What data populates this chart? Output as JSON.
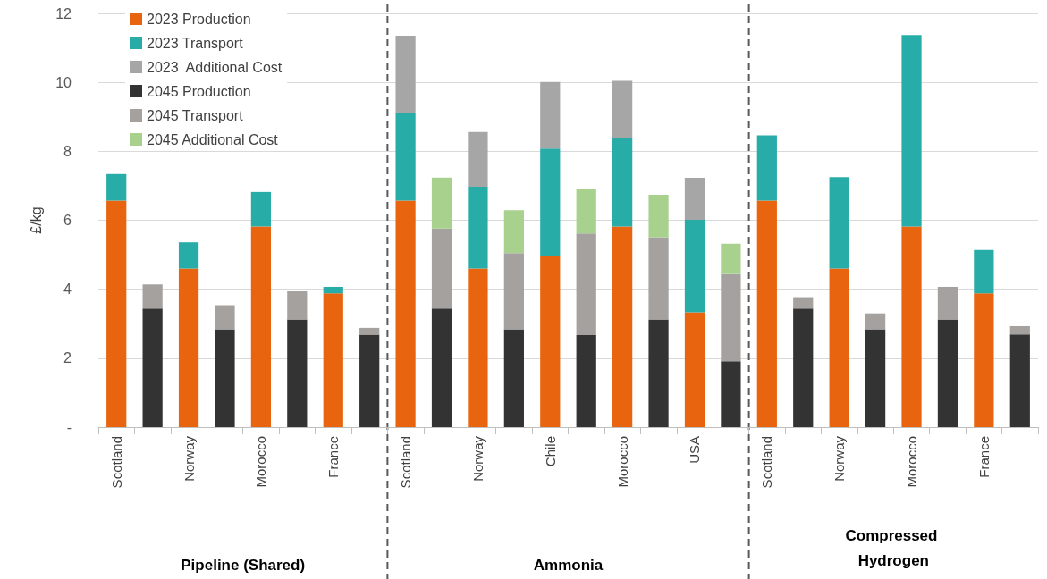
{
  "chart_data": {
    "type": "bar",
    "stacked": true,
    "ylabel": "£/kg",
    "categories": [
      "Scotland",
      null,
      "Norway",
      null,
      "Morocco",
      null,
      "France",
      null,
      "Scotland",
      null,
      "Norway",
      null,
      "Chile",
      null,
      "Morocco",
      null,
      "USA",
      null,
      "Scotland",
      null,
      "Norway",
      null,
      "Morocco",
      null,
      "France",
      null
    ],
    "series": [
      {
        "name": "2023 Production",
        "color": "#e8640f",
        "values": [
          6.57,
          null,
          4.6,
          null,
          5.82,
          null,
          3.88,
          null,
          6.57,
          null,
          4.6,
          null,
          4.97,
          null,
          5.82,
          null,
          3.33,
          null,
          6.57,
          null,
          4.6,
          null,
          5.82,
          null,
          3.88,
          null
        ]
      },
      {
        "name": "2023 Transport",
        "color": "#27aca7",
        "values": [
          0.77,
          null,
          0.76,
          null,
          1.0,
          null,
          0.19,
          null,
          2.53,
          null,
          2.37,
          null,
          3.11,
          null,
          2.57,
          null,
          2.68,
          null,
          1.89,
          null,
          2.65,
          null,
          5.55,
          null,
          1.26,
          null
        ]
      },
      {
        "name": "2023  Additional Cost",
        "color": "#a6a6a6",
        "values": [
          null,
          null,
          null,
          null,
          null,
          null,
          null,
          null,
          2.25,
          null,
          1.59,
          null,
          1.93,
          null,
          1.65,
          null,
          1.22,
          null,
          null,
          null,
          null,
          null,
          null,
          null,
          null,
          null
        ]
      },
      {
        "name": "2045 Production",
        "color": "#333333",
        "values": [
          null,
          3.44,
          null,
          2.84,
          null,
          3.12,
          null,
          2.68,
          null,
          3.44,
          null,
          2.84,
          null,
          2.67,
          null,
          3.12,
          null,
          1.91,
          null,
          3.44,
          null,
          2.84,
          null,
          3.12,
          null,
          2.69
        ]
      },
      {
        "name": "2045 Transport",
        "color": "#a5a19f",
        "values": [
          null,
          0.7,
          null,
          0.7,
          null,
          0.82,
          null,
          0.2,
          null,
          2.32,
          null,
          2.21,
          null,
          2.95,
          null,
          2.39,
          null,
          2.53,
          null,
          0.33,
          null,
          0.46,
          null,
          0.95,
          null,
          0.24
        ]
      },
      {
        "name": "2045 Additional Cost",
        "color": "#a9d18e",
        "values": [
          null,
          null,
          null,
          null,
          null,
          null,
          null,
          null,
          null,
          1.48,
          null,
          1.24,
          null,
          1.28,
          null,
          1.23,
          null,
          0.88,
          null,
          null,
          null,
          null,
          null,
          null,
          null,
          null
        ]
      }
    ],
    "ylim": [
      0,
      12
    ],
    "yticks": [
      {
        "value": 0,
        "label": "-"
      },
      2,
      4,
      6,
      8,
      10,
      12
    ],
    "grid": "y",
    "legend": "top left",
    "annotations": [
      "Pipeline (Shared)",
      "Ammonia",
      "Compressed Hydrogen"
    ]
  }
}
